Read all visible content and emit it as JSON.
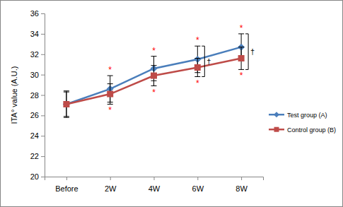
{
  "chart_data": {
    "type": "line",
    "y_label": "ITA° value (A.U.)",
    "categories": [
      "Before",
      "2W",
      "4W",
      "6W",
      "8W"
    ],
    "series": [
      {
        "name": "Test group (A)",
        "color": "#4a7ebb",
        "marker": "diamond",
        "values": [
          27.1,
          28.6,
          30.6,
          31.5,
          32.7
        ],
        "errors": [
          1.3,
          1.3,
          1.2,
          1.3,
          1.3
        ]
      },
      {
        "name": "Control group (B)",
        "color": "#be4b48",
        "marker": "square",
        "values": [
          27.1,
          28.1,
          29.9,
          30.7,
          31.6
        ],
        "errors": [
          1.2,
          1.0,
          1.0,
          0.9,
          1.1
        ]
      }
    ],
    "ylim": [
      20,
      36
    ],
    "yticks": [
      20,
      22,
      24,
      26,
      28,
      30,
      32,
      34,
      36
    ],
    "legend": "right",
    "annotations": [
      {
        "text": "*",
        "category": "2W",
        "series": 0
      },
      {
        "text": "*",
        "category": "2W",
        "series": 1
      },
      {
        "text": "*",
        "category": "4W",
        "series": 0
      },
      {
        "text": "*",
        "category": "4W",
        "series": 1
      },
      {
        "text": "*",
        "category": "6W",
        "series": 0
      },
      {
        "text": "*",
        "category": "6W",
        "series": 1
      },
      {
        "text": "*",
        "category": "8W",
        "series": 0
      },
      {
        "text": "*",
        "category": "8W",
        "series": 1
      }
    ],
    "comparisons": [
      {
        "text": "†",
        "category": "6W"
      },
      {
        "text": "†",
        "category": "8W"
      }
    ]
  }
}
